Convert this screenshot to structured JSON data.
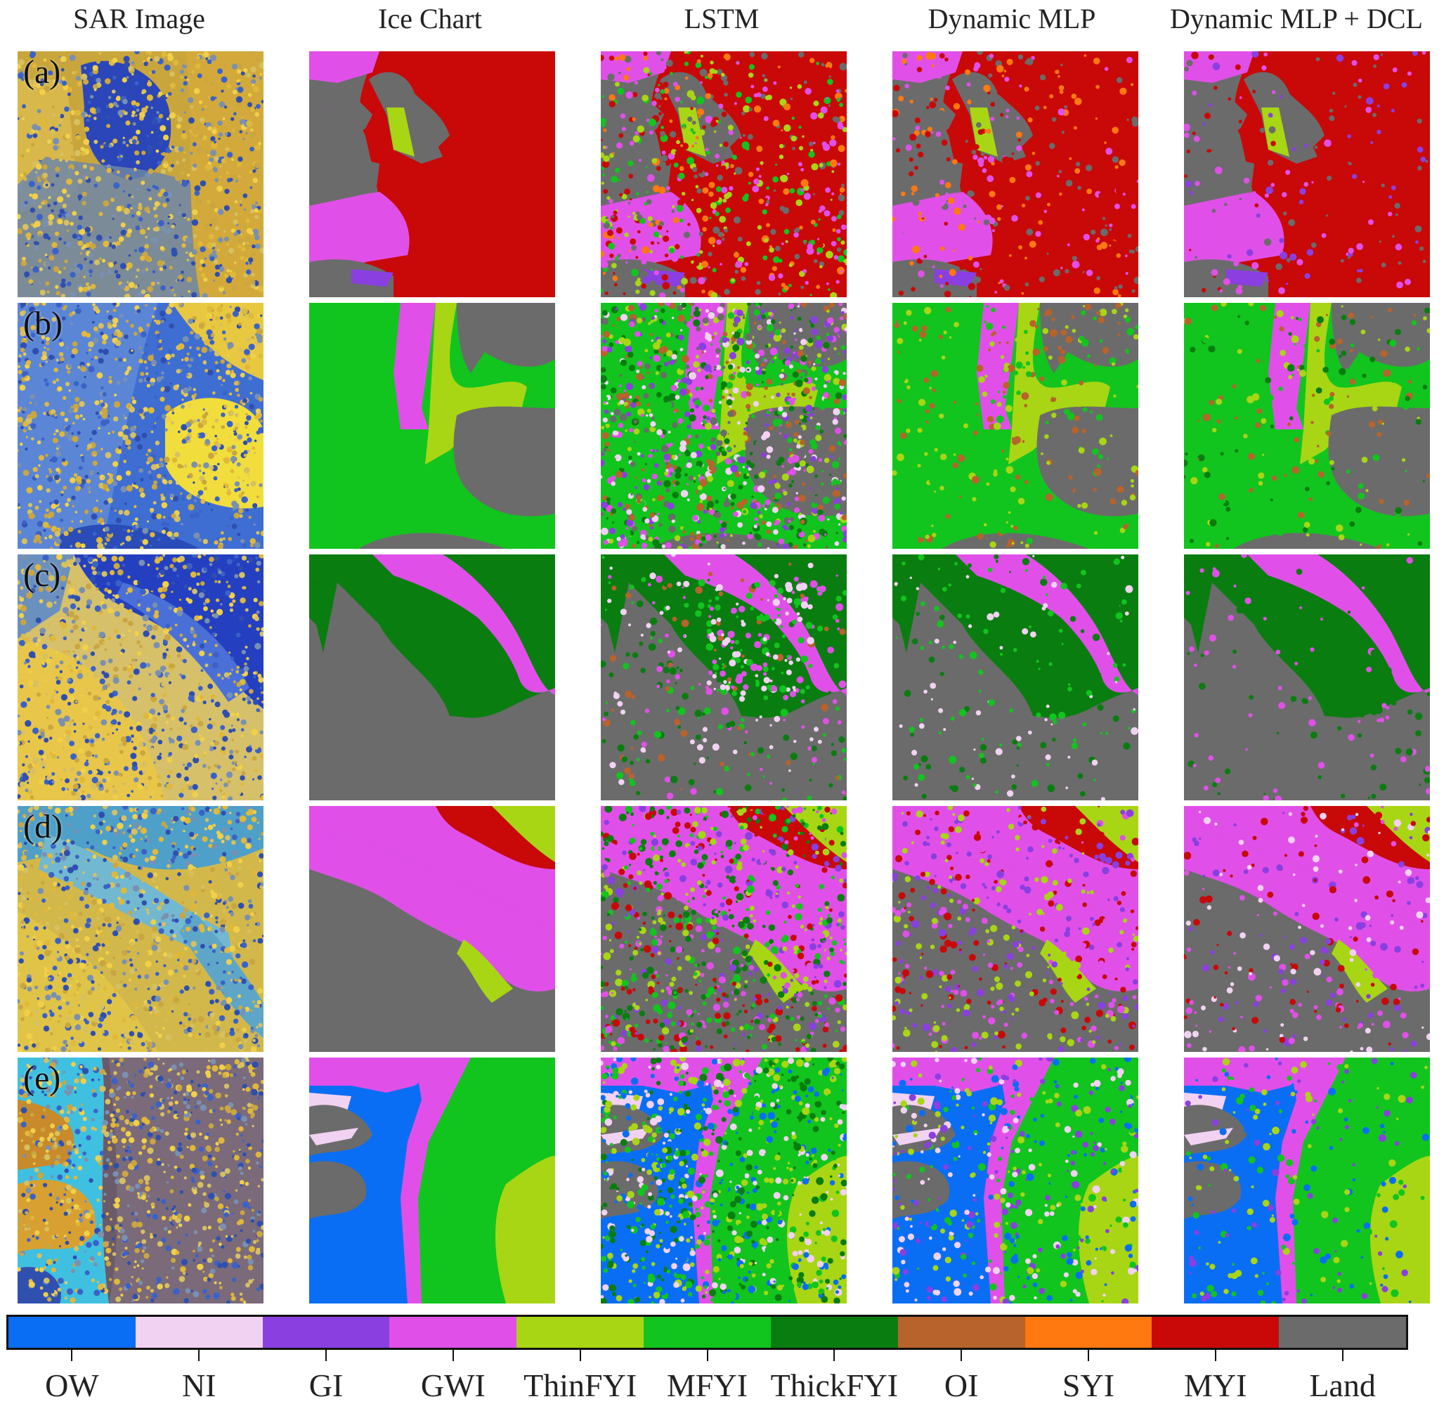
{
  "column_titles": [
    "SAR Image",
    "Ice Chart",
    "LSTM",
    "Dynamic MLP",
    "Dynamic MLP + DCL"
  ],
  "row_labels": [
    "(a)",
    "(b)",
    "(c)",
    "(d)",
    "(e)"
  ],
  "legend": {
    "classes": [
      {
        "label": "OW",
        "color": "#0a6ef5"
      },
      {
        "label": "NI",
        "color": "#f2d2f2"
      },
      {
        "label": "GI",
        "color": "#8a3fe0"
      },
      {
        "label": "GWI",
        "color": "#e050e8"
      },
      {
        "label": "ThinFYI",
        "color": "#a8d614"
      },
      {
        "label": "MFYI",
        "color": "#12c41e"
      },
      {
        "label": "ThickFYI",
        "color": "#0a7d10"
      },
      {
        "label": "OI",
        "color": "#b8622c"
      },
      {
        "label": "SYI",
        "color": "#ff7810"
      },
      {
        "label": "MYI",
        "color": "#c90808"
      },
      {
        "label": "Land",
        "color": "#6b6b6b"
      }
    ]
  }
}
